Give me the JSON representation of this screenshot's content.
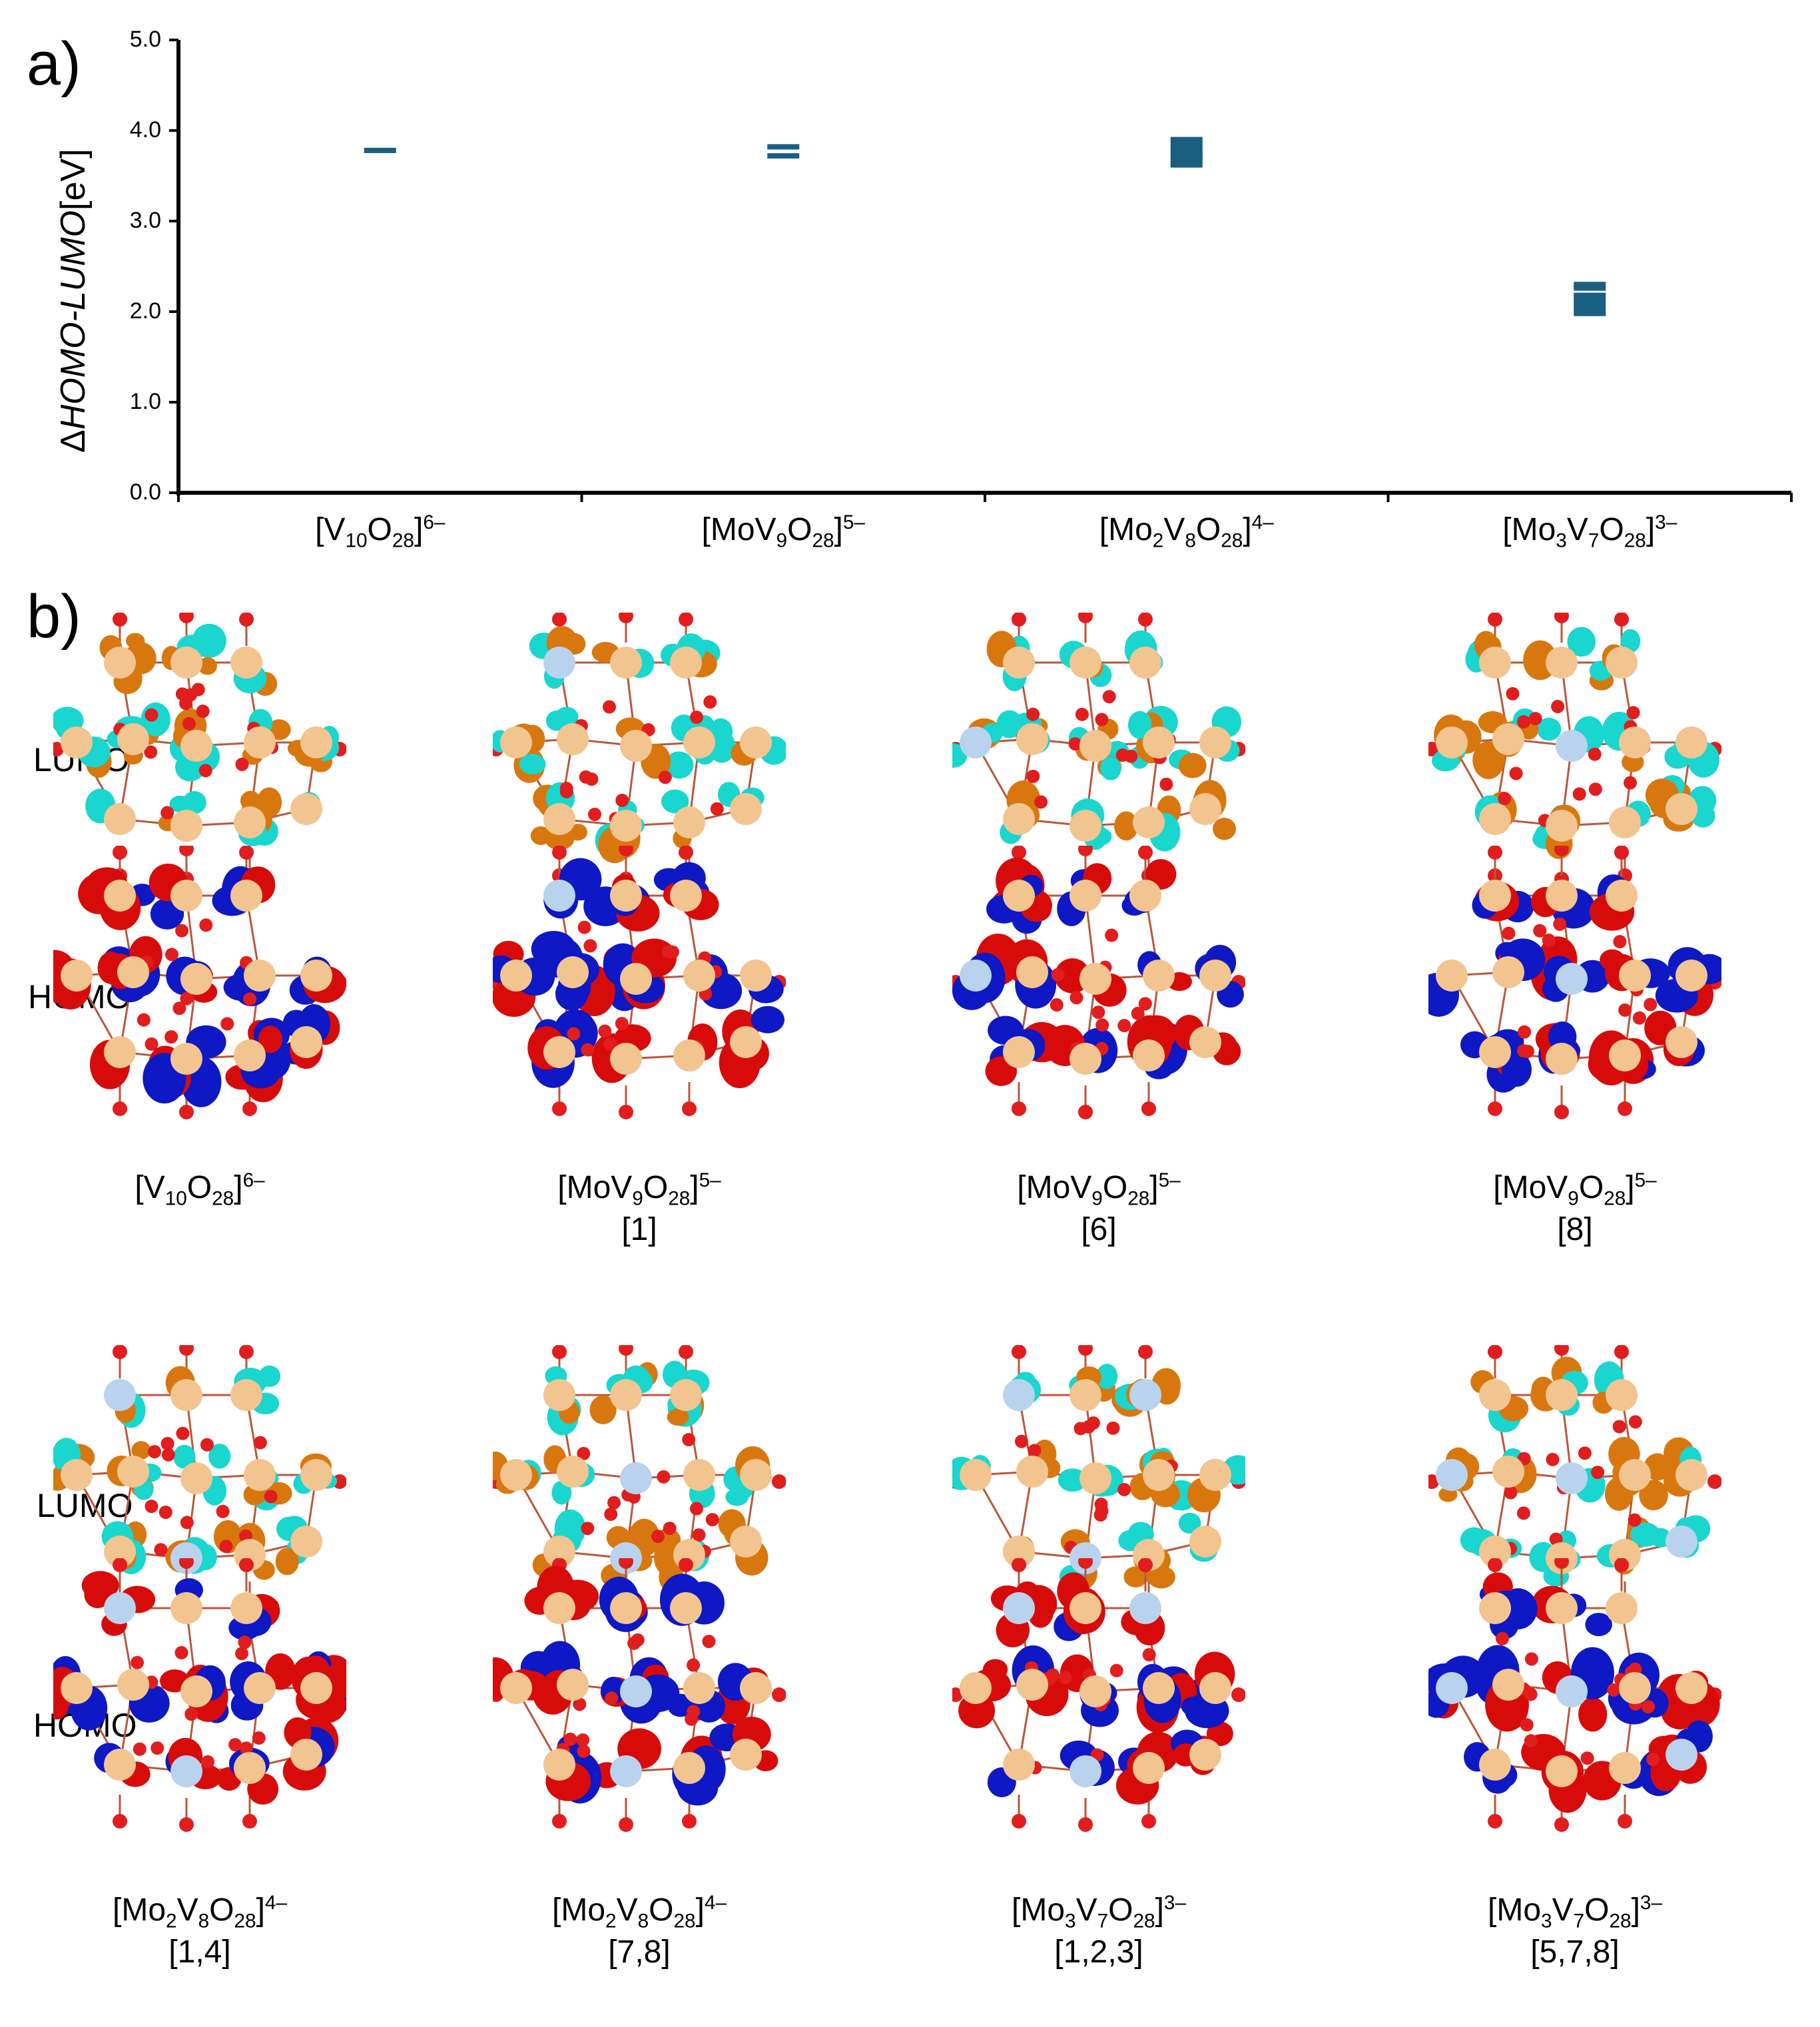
{
  "panel_a_label": "a)",
  "panel_b_label": "b)",
  "chart_data": {
    "type": "scatter",
    "ylabel_delta": "Δ",
    "ylabel_italic": "HOMO-LUMO",
    "ylabel_unit": "[eV]",
    "ylim": [
      0,
      5
    ],
    "yticks": [
      "0.0",
      "1.0",
      "2.0",
      "3.0",
      "4.0",
      "5.0"
    ],
    "categories": [
      {
        "base": "[V",
        "s1": "10",
        "m1": "O",
        "s2": "28",
        "m2": "]",
        "charge": "6–"
      },
      {
        "base": "[MoV",
        "s1": "9",
        "m1": "O",
        "s2": "28",
        "m2": "]",
        "charge": "5–"
      },
      {
        "base": "[Mo",
        "s1": "2",
        "m1": "V",
        "s2": "8",
        "m2": "O",
        "s3": "28",
        "m3": "]",
        "charge": "4–"
      },
      {
        "base": "[Mo",
        "s1": "3",
        "m1": "V",
        "s2": "7",
        "m2": "O",
        "s3": "28",
        "m3": "]",
        "charge": "3–"
      }
    ],
    "values": [
      [
        3.78
      ],
      [
        3.72,
        3.82
      ],
      [
        3.62,
        3.66,
        3.7,
        3.74,
        3.78,
        3.82,
        3.86,
        3.9
      ],
      [
        1.98,
        2.03,
        2.08,
        2.13,
        2.18,
        2.26,
        2.3
      ]
    ],
    "marker_color": "#1b5f80",
    "grid": false
  },
  "row_labels": {
    "lumo": "LUMO",
    "homo": "HOMO"
  },
  "colors": {
    "vanadium": "#f2c48f",
    "molybdenum": "#b9d3ee",
    "oxygen": "#e11d1d",
    "bond": "#b9573a",
    "lumo_pos": "#d9770f",
    "lumo_neg": "#19d6cf",
    "homo_pos": "#d80b0b",
    "homo_neg": "#0e18c4"
  },
  "molecules_top": [
    {
      "formula": {
        "base": "[V",
        "s1": "10",
        "m1": "O",
        "s2": "28",
        "m2": "]",
        "charge": "6–"
      },
      "sites": ""
    },
    {
      "formula": {
        "base": "[MoV",
        "s1": "9",
        "m1": "O",
        "s2": "28",
        "m2": "]",
        "charge": "5–"
      },
      "sites": "[1]"
    },
    {
      "formula": {
        "base": "[MoV",
        "s1": "9",
        "m1": "O",
        "s2": "28",
        "m2": "]",
        "charge": "5–"
      },
      "sites": "[6]"
    },
    {
      "formula": {
        "base": "[MoV",
        "s1": "9",
        "m1": "O",
        "s2": "28",
        "m2": "]",
        "charge": "5–"
      },
      "sites": "[8]"
    }
  ],
  "molecules_bottom": [
    {
      "formula": {
        "base": "[Mo",
        "s1": "2",
        "m1": "V",
        "s2": "8",
        "m2": "O",
        "s3": "28",
        "m3": "]",
        "charge": "4–"
      },
      "sites": "[1,4]"
    },
    {
      "formula": {
        "base": "[Mo",
        "s1": "2",
        "m1": "V",
        "s2": "8",
        "m2": "O",
        "s3": "28",
        "m3": "]",
        "charge": "4–"
      },
      "sites": "[7,8]"
    },
    {
      "formula": {
        "base": "[Mo",
        "s1": "3",
        "m1": "V",
        "s2": "7",
        "m2": "O",
        "s3": "28",
        "m3": "]",
        "charge": "3–"
      },
      "sites": "[1,2,3]"
    },
    {
      "formula": {
        "base": "[Mo",
        "s1": "3",
        "m1": "V",
        "s2": "7",
        "m2": "O",
        "s3": "28",
        "m3": "]",
        "charge": "3–"
      },
      "sites": "[5,7,8]"
    }
  ]
}
